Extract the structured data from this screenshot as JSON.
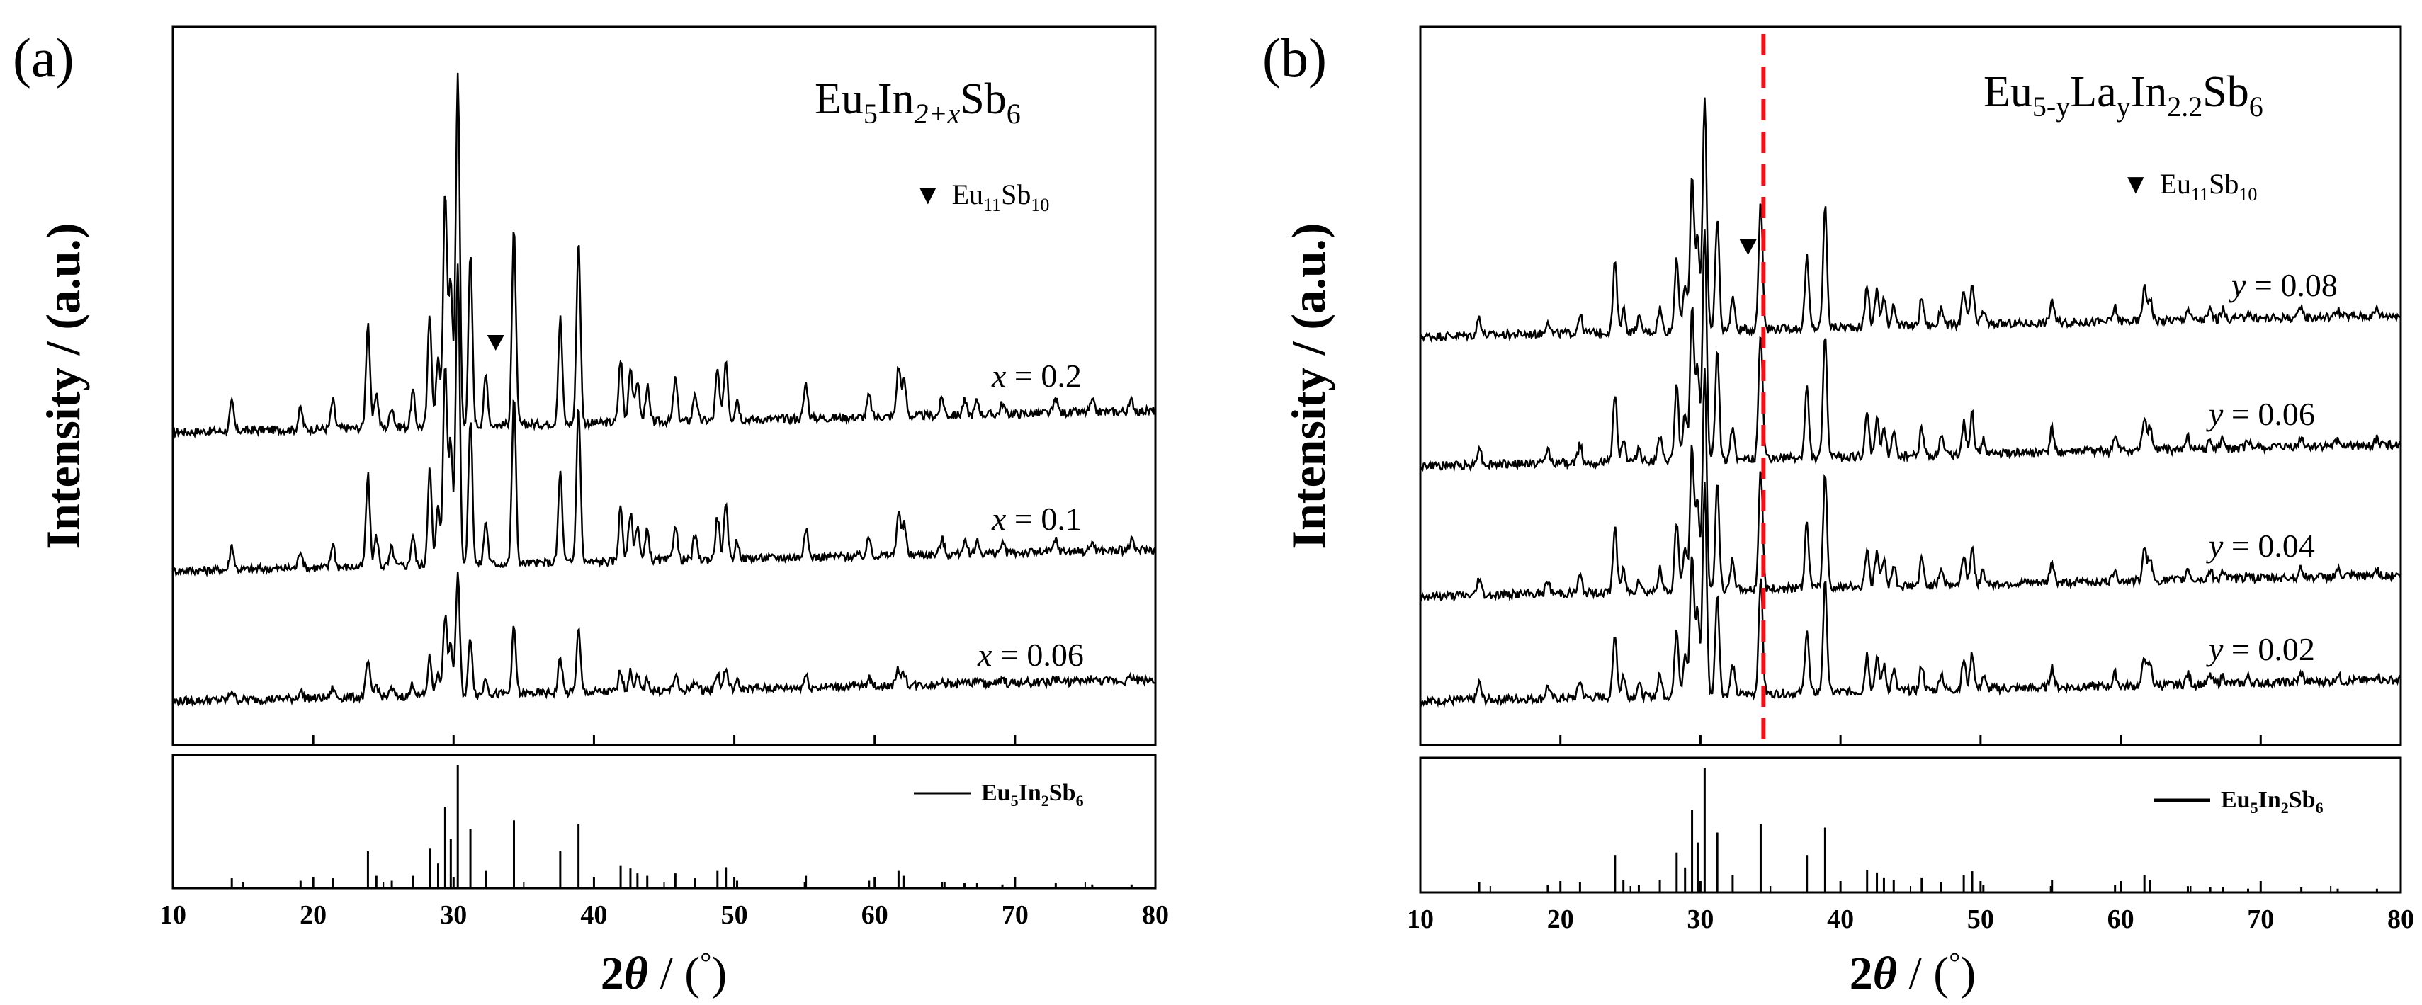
{
  "panels": [
    {
      "panel_label": "(a)",
      "title": {
        "base": "Eu",
        "sub1": "5",
        "mid": "In",
        "sub2": "2+x",
        "end": "Sb",
        "sub3": "6"
      },
      "impurity_legend": {
        "marker": "▼",
        "base": "Eu",
        "sub1": "11",
        "mid": "Sb",
        "sub2": "10"
      },
      "ylabel": "Intensity / (a.u.)",
      "reference_label": {
        "base1": "Eu",
        "sub1": "5",
        "base2": "In",
        "sub2": "2",
        "base3": "Sb",
        "sub3": "6"
      },
      "traces": [
        {
          "var": "x",
          "rest": " = 0.2",
          "impurity_marker_2theta": 33.0
        },
        {
          "var": "x",
          "rest": " = 0.1"
        },
        {
          "var": "x",
          "rest": " = 0.06"
        }
      ],
      "has_dashed_line": false
    },
    {
      "panel_label": "(b)",
      "title": {
        "base": "Eu",
        "sub1": "5-y",
        "mid": "La",
        "sub2": "y",
        "mid2": "In",
        "sub3": "2.2",
        "end": "Sb",
        "sub4": "6"
      },
      "impurity_legend": {
        "marker": "▼",
        "base": "Eu",
        "sub1": "11",
        "mid": "Sb",
        "sub2": "10"
      },
      "ylabel": "Intensity / (a.u.)",
      "reference_label": {
        "base1": "Eu",
        "sub1": "5",
        "base2": "In",
        "sub2": "2",
        "base3": "Sb",
        "sub3": "6"
      },
      "traces": [
        {
          "var": "y",
          "rest": " = 0.08",
          "impurity_marker_2theta": 33.4
        },
        {
          "var": "y",
          "rest": " = 0.06"
        },
        {
          "var": "y",
          "rest": " = 0.04"
        },
        {
          "var": "y",
          "rest": " = 0.02"
        }
      ],
      "has_dashed_line": true,
      "dashed_line_2theta": 34.5
    }
  ],
  "colors": {
    "line": "#000000",
    "dashed": "#e8141c",
    "background": "#ffffff"
  },
  "chart_data": [
    {
      "type": "line",
      "title": "Eu5In2+xSb6",
      "xlabel": "2θ / (°)",
      "ylabel": "Intensity / (a.u.)",
      "xlim": [
        10,
        80
      ],
      "xticks": [
        10,
        20,
        30,
        40,
        50,
        60,
        70,
        80
      ],
      "series": [
        {
          "name": "x = 0.2"
        },
        {
          "name": "x = 0.1"
        },
        {
          "name": "x = 0.06"
        }
      ],
      "reference": {
        "name": "Eu5In2Sb6",
        "peaks": [
          [
            14.2,
            0.08
          ],
          [
            19.1,
            0.06
          ],
          [
            21.4,
            0.08
          ],
          [
            23.9,
            0.3
          ],
          [
            24.5,
            0.1
          ],
          [
            25.6,
            0.06
          ],
          [
            27.1,
            0.1
          ],
          [
            28.3,
            0.32
          ],
          [
            28.9,
            0.2
          ],
          [
            29.4,
            0.66
          ],
          [
            29.8,
            0.4
          ],
          [
            30.3,
            1.0
          ],
          [
            31.2,
            0.48
          ],
          [
            32.3,
            0.14
          ],
          [
            34.3,
            0.55
          ],
          [
            37.6,
            0.3
          ],
          [
            38.9,
            0.52
          ],
          [
            41.9,
            0.18
          ],
          [
            42.6,
            0.16
          ],
          [
            43.1,
            0.12
          ],
          [
            43.8,
            0.1
          ],
          [
            45.8,
            0.12
          ],
          [
            47.2,
            0.08
          ],
          [
            48.8,
            0.14
          ],
          [
            49.4,
            0.17
          ],
          [
            50.2,
            0.06
          ],
          [
            55.1,
            0.1
          ],
          [
            59.6,
            0.06
          ],
          [
            61.7,
            0.14
          ],
          [
            62.1,
            0.1
          ],
          [
            64.8,
            0.05
          ],
          [
            66.4,
            0.04
          ],
          [
            67.3,
            0.04
          ],
          [
            69.1,
            0.03
          ],
          [
            72.9,
            0.04
          ],
          [
            75.5,
            0.03
          ],
          [
            78.3,
            0.03
          ]
        ]
      }
    },
    {
      "type": "line",
      "title": "Eu5-yLayIn2.2Sb6",
      "xlabel": "2θ / (°)",
      "ylabel": "Intensity / (a.u.)",
      "xlim": [
        10,
        80
      ],
      "xticks": [
        10,
        20,
        30,
        40,
        50,
        60,
        70,
        80
      ],
      "series": [
        {
          "name": "y = 0.08"
        },
        {
          "name": "y = 0.06"
        },
        {
          "name": "y = 0.04"
        },
        {
          "name": "y = 0.02"
        }
      ],
      "reference": {
        "name": "Eu5In2Sb6",
        "peaks": [
          [
            14.2,
            0.08
          ],
          [
            19.1,
            0.06
          ],
          [
            21.4,
            0.08
          ],
          [
            23.9,
            0.3
          ],
          [
            24.5,
            0.1
          ],
          [
            25.6,
            0.06
          ],
          [
            27.1,
            0.1
          ],
          [
            28.3,
            0.32
          ],
          [
            28.9,
            0.2
          ],
          [
            29.4,
            0.66
          ],
          [
            29.8,
            0.4
          ],
          [
            30.3,
            1.0
          ],
          [
            31.2,
            0.48
          ],
          [
            32.3,
            0.14
          ],
          [
            34.3,
            0.55
          ],
          [
            37.6,
            0.3
          ],
          [
            38.9,
            0.52
          ],
          [
            41.9,
            0.18
          ],
          [
            42.6,
            0.16
          ],
          [
            43.1,
            0.12
          ],
          [
            43.8,
            0.1
          ],
          [
            45.8,
            0.12
          ],
          [
            47.2,
            0.08
          ],
          [
            48.8,
            0.14
          ],
          [
            49.4,
            0.17
          ],
          [
            50.2,
            0.06
          ],
          [
            55.1,
            0.1
          ],
          [
            59.6,
            0.06
          ],
          [
            61.7,
            0.14
          ],
          [
            62.1,
            0.1
          ],
          [
            64.8,
            0.05
          ],
          [
            66.4,
            0.04
          ],
          [
            67.3,
            0.04
          ],
          [
            69.1,
            0.03
          ],
          [
            72.9,
            0.04
          ],
          [
            75.5,
            0.03
          ],
          [
            78.3,
            0.03
          ]
        ]
      }
    }
  ],
  "xlabel_parts": {
    "num": "2",
    "theta": "θ",
    "slash": " / (",
    "deg": "°",
    "close": ")"
  }
}
